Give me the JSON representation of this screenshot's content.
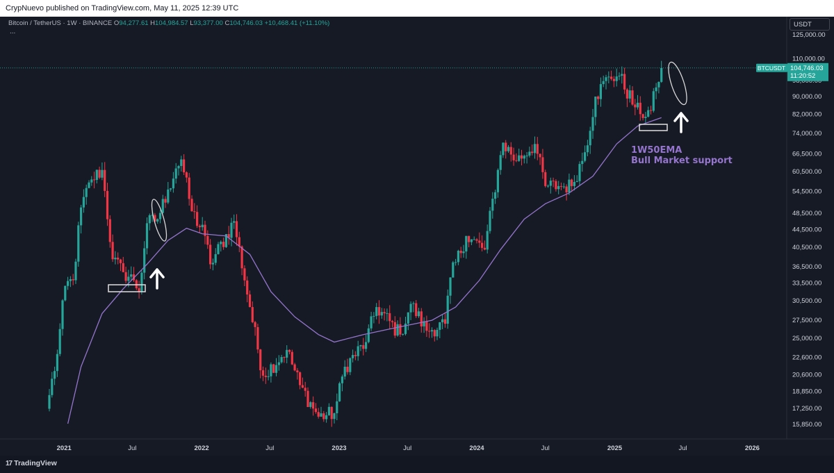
{
  "header": {
    "published": "CrypNuevo published on TradingView.com, May 11, 2025 12:39 UTC"
  },
  "legend": {
    "symbol": "Bitcoin / TetherUS · 1W · BINANCE",
    "open_key": "O",
    "open": "94,277.61",
    "high_key": "H",
    "high": "104,984.57",
    "low_key": "L",
    "low": "93,377.00",
    "close_key": "C",
    "close": "104,746.03",
    "change": "+10,468.41 (+11.10%)",
    "more": "..."
  },
  "currency": "USDT",
  "price_tag": {
    "symbol": "BTCUSDT",
    "price": "104,746.03",
    "countdown": "11:20:52"
  },
  "annotations": {
    "ema_label_1": "1W50EMA",
    "ema_label_2": "Bull Market support"
  },
  "footer": {
    "brand": "TradingView"
  },
  "colors": {
    "up": "#26a69a",
    "down": "#f23645",
    "ema": "#9575cd",
    "background": "#161a25"
  },
  "chart_data": {
    "type": "candlestick",
    "scale": "log",
    "ylim": [
      15100,
      132000
    ],
    "y_ticks": [
      "125,000.00",
      "110,000.00",
      "98,000.00",
      "90,000.00",
      "82,000.00",
      "74,000.00",
      "66,500.00",
      "60,500.00",
      "54,500.00",
      "48,500.00",
      "44,500.00",
      "40,500.00",
      "36,500.00",
      "33,500.00",
      "30,500.00",
      "27,500.00",
      "25,000.00",
      "22,600.00",
      "20,600.00",
      "18,850.00",
      "17,250.00",
      "15,850.00"
    ],
    "x_ticks": [
      "2021",
      "Jul",
      "2022",
      "Jul",
      "2023",
      "Jul",
      "2024",
      "Jul",
      "2025",
      "Jul",
      "2026"
    ],
    "anchors": [
      [
        "2020-11-23",
        18500
      ],
      [
        "2020-12-14",
        23000
      ],
      [
        "2021-01-04",
        33000
      ],
      [
        "2021-01-25",
        34000
      ],
      [
        "2021-02-15",
        50000
      ],
      [
        "2021-03-15",
        58000
      ],
      [
        "2021-04-12",
        61000
      ],
      [
        "2021-05-10",
        38000
      ],
      [
        "2021-06-07",
        35500
      ],
      [
        "2021-07-05",
        34000
      ],
      [
        "2021-07-19",
        32000
      ],
      [
        "2021-08-09",
        46000
      ],
      [
        "2021-09-06",
        47000
      ],
      [
        "2021-10-04",
        55000
      ],
      [
        "2021-10-25",
        61500
      ],
      [
        "2021-11-08",
        64500
      ],
      [
        "2021-12-06",
        49000
      ],
      [
        "2022-01-10",
        43000
      ],
      [
        "2022-01-24",
        37000
      ],
      [
        "2022-03-28",
        46500
      ],
      [
        "2022-05-09",
        29500
      ],
      [
        "2022-06-13",
        20500
      ],
      [
        "2022-08-15",
        23500
      ],
      [
        "2022-09-19",
        19500
      ],
      [
        "2022-11-07",
        16500
      ],
      [
        "2022-12-19",
        16800
      ],
      [
        "2023-01-16",
        21500
      ],
      [
        "2023-03-13",
        24500
      ],
      [
        "2023-04-10",
        29500
      ],
      [
        "2023-06-12",
        25500
      ],
      [
        "2023-07-10",
        30000
      ],
      [
        "2023-08-21",
        26000
      ],
      [
        "2023-10-09",
        27000
      ],
      [
        "2023-10-23",
        34500
      ],
      [
        "2023-12-04",
        43000
      ],
      [
        "2024-01-22",
        40000
      ],
      [
        "2024-02-26",
        61000
      ],
      [
        "2024-03-11",
        70500
      ],
      [
        "2024-04-15",
        64000
      ],
      [
        "2024-06-03",
        70000
      ],
      [
        "2024-07-01",
        56000
      ],
      [
        "2024-08-05",
        56000
      ],
      [
        "2024-09-09",
        56000
      ],
      [
        "2024-10-14",
        67000
      ],
      [
        "2024-11-11",
        90000
      ],
      [
        "2024-12-16",
        100000
      ],
      [
        "2025-01-13",
        100500
      ],
      [
        "2025-02-24",
        85000
      ],
      [
        "2025-03-10",
        82000
      ],
      [
        "2025-04-07",
        83500
      ],
      [
        "2025-04-21",
        94500
      ],
      [
        "2025-05-05",
        104746
      ]
    ],
    "ema_1w50": [
      [
        "2021-01-11",
        15900
      ],
      [
        "2021-02-15",
        21500
      ],
      [
        "2021-04-12",
        28500
      ],
      [
        "2021-06-07",
        32500
      ],
      [
        "2021-08-09",
        37000
      ],
      [
        "2021-10-04",
        42000
      ],
      [
        "2021-11-22",
        44800
      ],
      [
        "2022-01-03",
        43500
      ],
      [
        "2022-03-07",
        43000
      ],
      [
        "2022-05-09",
        39000
      ],
      [
        "2022-07-04",
        32000
      ],
      [
        "2022-09-05",
        28000
      ],
      [
        "2022-11-07",
        25500
      ],
      [
        "2022-12-19",
        24500
      ],
      [
        "2023-03-06",
        25500
      ],
      [
        "2023-06-05",
        26500
      ],
      [
        "2023-09-04",
        27500
      ],
      [
        "2023-11-06",
        29500
      ],
      [
        "2024-01-08",
        34000
      ],
      [
        "2024-03-04",
        40000
      ],
      [
        "2024-05-06",
        47000
      ],
      [
        "2024-07-01",
        51000
      ],
      [
        "2024-09-02",
        54000
      ],
      [
        "2024-11-04",
        59000
      ],
      [
        "2025-01-06",
        70000
      ],
      [
        "2025-03-03",
        77000
      ],
      [
        "2025-05-05",
        80500
      ]
    ],
    "last_price": 104746.03
  }
}
